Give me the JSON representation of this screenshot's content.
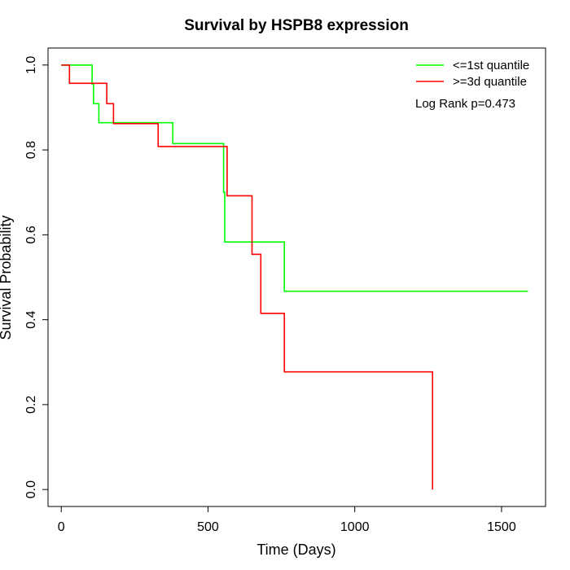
{
  "chart_data": {
    "type": "line",
    "title": "Survival by HSPB8 expression",
    "xlabel": "Time (Days)",
    "ylabel": "Survival Probability",
    "xlim": [
      -45,
      1650
    ],
    "ylim": [
      -0.04,
      1.04
    ],
    "xticks": [
      0,
      500,
      1000,
      1500
    ],
    "yticks": [
      0.0,
      0.2,
      0.4,
      0.6,
      0.8,
      1.0
    ],
    "xtick_labels": [
      "0",
      "500",
      "1000",
      "1500"
    ],
    "ytick_labels": [
      "0.0",
      "0.2",
      "0.4",
      "0.6",
      "0.8",
      "1.0"
    ],
    "grid": false,
    "legend_position": "top-right",
    "annotation": "Log Rank p=0.473",
    "series": [
      {
        "name": "<=1st quantile",
        "color": "#00ff00",
        "step": true,
        "points": [
          [
            0,
            1.0
          ],
          [
            105,
            1.0
          ],
          [
            105,
            0.955
          ],
          [
            110,
            0.955
          ],
          [
            110,
            0.909
          ],
          [
            128,
            0.909
          ],
          [
            128,
            0.864
          ],
          [
            380,
            0.864
          ],
          [
            380,
            0.815
          ],
          [
            553,
            0.815
          ],
          [
            553,
            0.7
          ],
          [
            557,
            0.7
          ],
          [
            557,
            0.583
          ],
          [
            760,
            0.583
          ],
          [
            760,
            0.467
          ],
          [
            1590,
            0.467
          ]
        ]
      },
      {
        "name": ">=3d quantile",
        "color": "#ff0000",
        "step": true,
        "points": [
          [
            0,
            1.0
          ],
          [
            28,
            1.0
          ],
          [
            28,
            0.957
          ],
          [
            155,
            0.957
          ],
          [
            155,
            0.909
          ],
          [
            178,
            0.909
          ],
          [
            178,
            0.862
          ],
          [
            330,
            0.862
          ],
          [
            330,
            0.808
          ],
          [
            565,
            0.808
          ],
          [
            565,
            0.692
          ],
          [
            650,
            0.692
          ],
          [
            650,
            0.554
          ],
          [
            680,
            0.554
          ],
          [
            680,
            0.415
          ],
          [
            760,
            0.415
          ],
          [
            760,
            0.277
          ],
          [
            1265,
            0.277
          ],
          [
            1265,
            0.0
          ]
        ]
      }
    ]
  }
}
